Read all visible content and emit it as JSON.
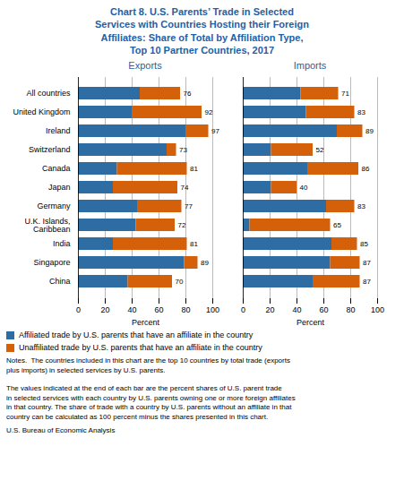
{
  "title": "Chart 8. U.S. Parents’ Trade in Selected\nServices with Countries Hosting their Foreign\nAffiliates: Share of Total by Affiliation Type,\nTop 10 Partner Countries, 2017",
  "annotations": [
    "Notes.  The countries included in this chart are the top 10 countries by total trade (exports\nplus imports) in selected services by U.S. parents.\n\nThe values indicated at the end of each bar are the percent shares of U.S. parent trade\nin selected services with each country by U.S. parents owning one or more foreign affiliates\nin that country. The share of trade with a country by U.S. parents without an affiliate in that\ncountry can be calculated as 100 percent minus the shares presented in this chart.",
    "U.S. Bureau of Economic Analysis"
  ],
  "chart_data": [
    {
      "type": "bar",
      "orientation": "horizontal",
      "stacked": true,
      "title": "Exports",
      "categories": [
        "All countries",
        "United Kingdom",
        "Ireland",
        "Switzerland",
        "Canada",
        "Japan",
        "Germany",
        "U.K. Islands,\nCaribbean",
        "India",
        "Singapore",
        "China"
      ],
      "series": [
        {
          "name": "Affiliated trade by U.S. parents that have an affiliate in the country",
          "color": "#2E6DA4",
          "values": [
            46,
            40,
            80,
            66,
            29,
            26,
            44,
            43,
            26,
            79,
            37
          ]
        },
        {
          "name": "Unaffiliated trade by U.S. parents that have an affiliate in the country",
          "color": "#D4600A",
          "values": [
            30,
            52,
            17,
            7,
            52,
            48,
            33,
            29,
            55,
            10,
            33
          ]
        }
      ],
      "totals": [
        76,
        92,
        97,
        73,
        81,
        74,
        77,
        72,
        81,
        89,
        70
      ],
      "xlabel": "Percent",
      "xlim": [
        0,
        100
      ],
      "xticks": [
        0,
        20,
        40,
        60,
        80,
        100
      ],
      "grid": true,
      "legend": "bottom"
    },
    {
      "type": "bar",
      "orientation": "horizontal",
      "stacked": true,
      "title": "Imports",
      "categories": [
        "All countries",
        "United Kingdom",
        "Ireland",
        "Switzerland",
        "Canada",
        "Japan",
        "Germany",
        "U.K. Islands,\nCaribbean",
        "India",
        "Singapore",
        "China"
      ],
      "series": [
        {
          "name": "Affiliated trade by U.S. parents that have an affiliate in the country",
          "color": "#2E6DA4",
          "values": [
            43,
            47,
            70,
            21,
            48,
            21,
            62,
            5,
            66,
            65,
            52
          ]
        },
        {
          "name": "Unaffiliated trade by U.S. parents that have an affiliate in the country",
          "color": "#D4600A",
          "values": [
            28,
            36,
            19,
            31,
            38,
            19,
            21,
            60,
            19,
            22,
            35
          ]
        }
      ],
      "totals": [
        71,
        83,
        89,
        52,
        86,
        40,
        83,
        65,
        85,
        87,
        87
      ],
      "xlabel": "Percent",
      "xlim": [
        0,
        100
      ],
      "xticks": [
        0,
        20,
        40,
        60,
        80,
        100
      ],
      "grid": true,
      "legend": "bottom",
      "tick_labels": "x"
    }
  ]
}
